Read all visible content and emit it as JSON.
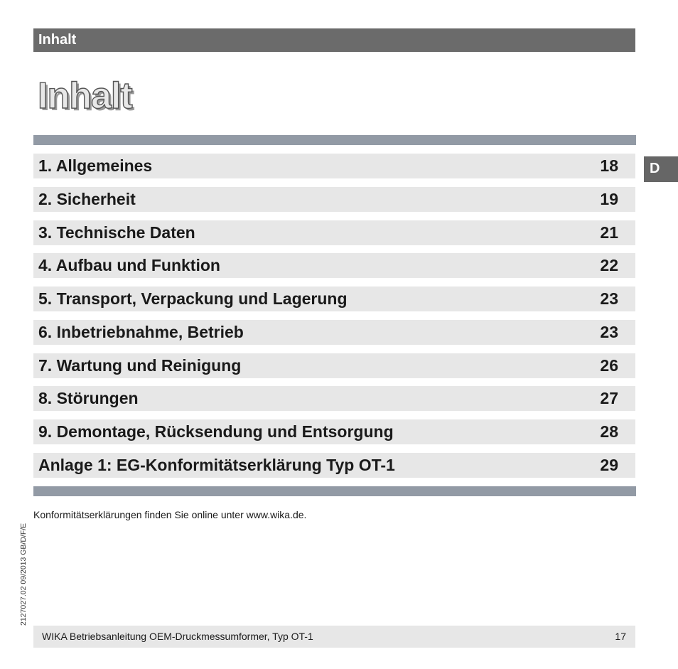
{
  "header": {
    "label": "Inhalt"
  },
  "page_title": "Inhalt",
  "language_tab": "D",
  "toc": [
    {
      "title": "1. Allgemeines",
      "page": "18"
    },
    {
      "title": "2. Sicherheit",
      "page": "19"
    },
    {
      "title": "3. Technische Daten",
      "page": "21"
    },
    {
      "title": "4. Aufbau und Funktion",
      "page": "22"
    },
    {
      "title": "5. Transport, Verpackung und Lagerung",
      "page": "23"
    },
    {
      "title": "6. Inbetriebnahme, Betrieb",
      "page": "23"
    },
    {
      "title": "7. Wartung und Reinigung",
      "page": "26"
    },
    {
      "title": "8. Störungen",
      "page": "27"
    },
    {
      "title": "9. Demontage, Rücksendung und Entsorgung",
      "page": "28"
    },
    {
      "title": "Anlage 1: EG-Konformitätserklärung Typ OT-1",
      "page": "29"
    }
  ],
  "note": "Konformitätserklärungen finden Sie online unter www.wika.de.",
  "side_code": "2127027.02 09/2013 GB/D/F/E",
  "footer": {
    "text": "WIKA Betriebsanleitung OEM-Druckmessumformer, Typ OT-1",
    "page_number": "17"
  },
  "colors": {
    "header_bar": "#6b6b6b",
    "rule": "#929aa5",
    "row_background": "#e7e7e7"
  }
}
